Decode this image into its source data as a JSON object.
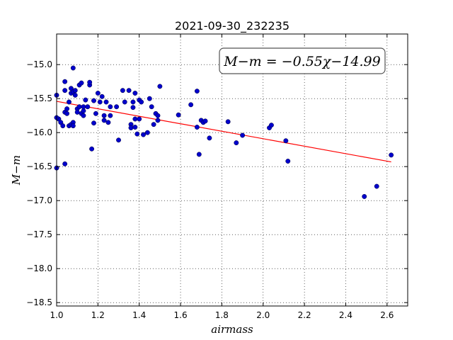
{
  "chart_data": {
    "type": "scatter",
    "title": "2021-09-30_232235",
    "xlabel": "airmass",
    "ylabel": "M−m",
    "xlim": [
      1.0,
      2.7
    ],
    "ylim": [
      -18.55,
      -14.55
    ],
    "x_ticks": [
      1.0,
      1.2,
      1.4,
      1.6,
      1.8,
      2.0,
      2.2,
      2.4,
      2.6
    ],
    "x_tick_labels": [
      "1.0",
      "1.2",
      "1.4",
      "1.6",
      "1.8",
      "2.0",
      "2.2",
      "2.4",
      "2.6"
    ],
    "y_ticks": [
      -15.0,
      -15.5,
      -16.0,
      -16.5,
      -17.0,
      -17.5,
      -18.0,
      -18.5
    ],
    "y_tick_labels": [
      "−15.0",
      "−15.5",
      "−16.0",
      "−16.5",
      "−17.0",
      "−17.5",
      "−18.0",
      "−18.5"
    ],
    "grid": true,
    "annotation": "M−m = −0.55χ−14.99",
    "fit": {
      "slope": -0.55,
      "intercept": -14.99,
      "x_range": [
        1.0,
        2.62
      ],
      "color": "#ff0000"
    },
    "point_color": "#0000cc",
    "series": [
      {
        "x": [
          1.0,
          1.01,
          1.0,
          1.02,
          1.03,
          1.04,
          1.04,
          1.05,
          1.05,
          1.06,
          1.06,
          1.07,
          1.07,
          1.07,
          1.08,
          1.08,
          1.08,
          1.09,
          1.09,
          1.1,
          1.1,
          1.11,
          1.11,
          1.12,
          1.12,
          1.13,
          1.13,
          1.13,
          1.14,
          1.15,
          1.16,
          1.16,
          1.17,
          1.18,
          1.18,
          1.19,
          1.2,
          1.21,
          1.22,
          1.23,
          1.23,
          1.24,
          1.25,
          1.26,
          1.26,
          1.29,
          1.3,
          1.32,
          1.33,
          1.35,
          1.36,
          1.36,
          1.37,
          1.37,
          1.38,
          1.38,
          1.38,
          1.39,
          1.4,
          1.4,
          1.41,
          1.42,
          1.44,
          1.45,
          1.46,
          1.47,
          1.48,
          1.49,
          1.49,
          1.5,
          1.59,
          1.65,
          1.68,
          1.68,
          1.69,
          1.7,
          1.71,
          1.72,
          1.74,
          1.83,
          1.87,
          1.9,
          2.03,
          2.04,
          2.11,
          2.12,
          2.49,
          2.55,
          2.62,
          1.08,
          1.04,
          1.0,
          1.04
        ],
        "y": [
          -15.45,
          -15.8,
          -16.52,
          -15.85,
          -15.9,
          -15.7,
          -15.38,
          -15.65,
          -15.72,
          -15.55,
          -15.9,
          -15.42,
          -15.35,
          -15.88,
          -15.85,
          -15.4,
          -15.9,
          -15.38,
          -15.45,
          -15.65,
          -15.7,
          -15.3,
          -15.62,
          -15.27,
          -15.72,
          -15.62,
          -15.75,
          -15.68,
          -15.52,
          -15.62,
          -15.3,
          -15.26,
          -16.24,
          -15.53,
          -15.86,
          -15.72,
          -15.42,
          -15.55,
          -15.47,
          -15.75,
          -15.82,
          -15.55,
          -15.85,
          -15.62,
          -15.75,
          -15.62,
          -16.11,
          -15.38,
          -15.55,
          -15.38,
          -15.88,
          -15.93,
          -15.63,
          -15.55,
          -15.8,
          -15.42,
          -15.92,
          -16.02,
          -15.52,
          -15.8,
          -15.55,
          -16.03,
          -16.0,
          -15.5,
          -15.62,
          -15.88,
          -15.72,
          -15.82,
          -15.75,
          -15.32,
          -15.74,
          -15.59,
          -15.92,
          -15.39,
          -16.32,
          -15.82,
          -15.85,
          -15.83,
          -16.08,
          -15.84,
          -16.15,
          -16.04,
          -15.93,
          -15.89,
          -16.12,
          -16.42,
          -16.94,
          -16.79,
          -16.33,
          -15.05,
          -15.25,
          -15.78,
          -16.46
        ]
      }
    ]
  }
}
